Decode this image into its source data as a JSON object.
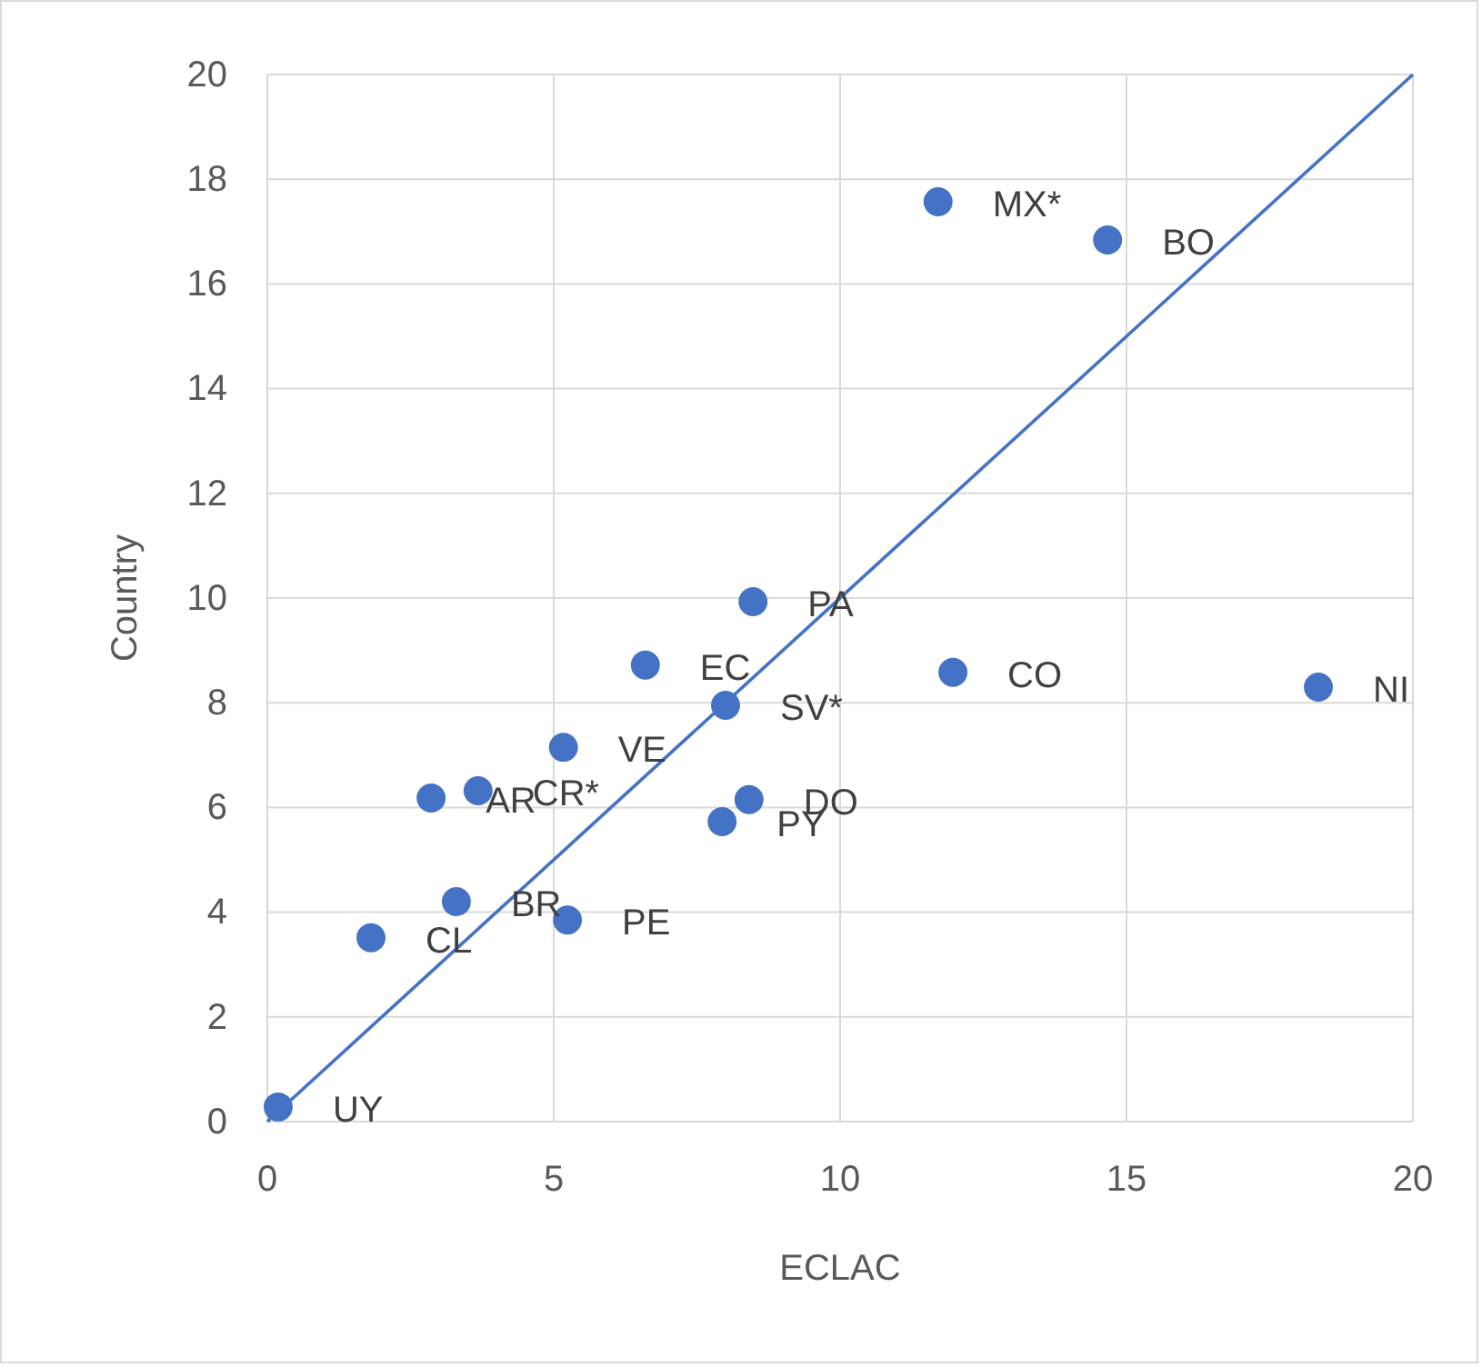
{
  "chart_data": {
    "type": "scatter",
    "xlabel": "ECLAC",
    "ylabel": "Country",
    "xlim": [
      0,
      20
    ],
    "ylim": [
      0,
      20
    ],
    "xticks": [
      0,
      5,
      10,
      15,
      20
    ],
    "yticks": [
      0,
      2,
      4,
      6,
      8,
      10,
      12,
      14,
      16,
      18,
      20
    ],
    "grid": true,
    "series": [
      {
        "marker": "circle",
        "color": "#4472c4",
        "x": [
          0.19,
          1.81,
          3.3,
          5.24,
          2.86,
          3.68,
          5.17,
          6.6,
          8.0,
          7.94,
          8.41,
          8.48,
          11.97,
          18.35,
          11.71,
          14.67
        ],
        "values": [
          0.28,
          3.51,
          4.2,
          3.85,
          6.18,
          6.32,
          7.15,
          8.72,
          7.95,
          5.73,
          6.15,
          9.93,
          8.58,
          8.3,
          17.57,
          16.84
        ]
      },
      {
        "type": "line",
        "marker": "none",
        "color": "#4472c4",
        "x": [
          0,
          20
        ],
        "values": [
          0,
          20
        ]
      }
    ],
    "annotations": [
      {
        "text": "UY",
        "x": 0.19,
        "y": 0.28
      },
      {
        "text": "CL",
        "x": 1.81,
        "y": 3.51
      },
      {
        "text": "BR",
        "x": 3.3,
        "y": 4.2
      },
      {
        "text": "PE",
        "x": 5.24,
        "y": 3.85
      },
      {
        "text": "AR",
        "x": 2.86,
        "y": 6.18
      },
      {
        "text": "CR*",
        "x": 3.68,
        "y": 6.32
      },
      {
        "text": "VE",
        "x": 5.17,
        "y": 7.15
      },
      {
        "text": "EC",
        "x": 6.6,
        "y": 8.72
      },
      {
        "text": "SV*",
        "x": 8.0,
        "y": 7.95
      },
      {
        "text": "PY",
        "x": 7.94,
        "y": 5.73
      },
      {
        "text": "DO",
        "x": 8.41,
        "y": 6.15
      },
      {
        "text": "PA",
        "x": 8.48,
        "y": 9.93
      },
      {
        "text": "CO",
        "x": 11.97,
        "y": 8.58
      },
      {
        "text": "NI",
        "x": 18.35,
        "y": 8.3
      },
      {
        "text": "MX*",
        "x": 11.71,
        "y": 17.57
      },
      {
        "text": "BO",
        "x": 14.67,
        "y": 16.84
      }
    ]
  }
}
